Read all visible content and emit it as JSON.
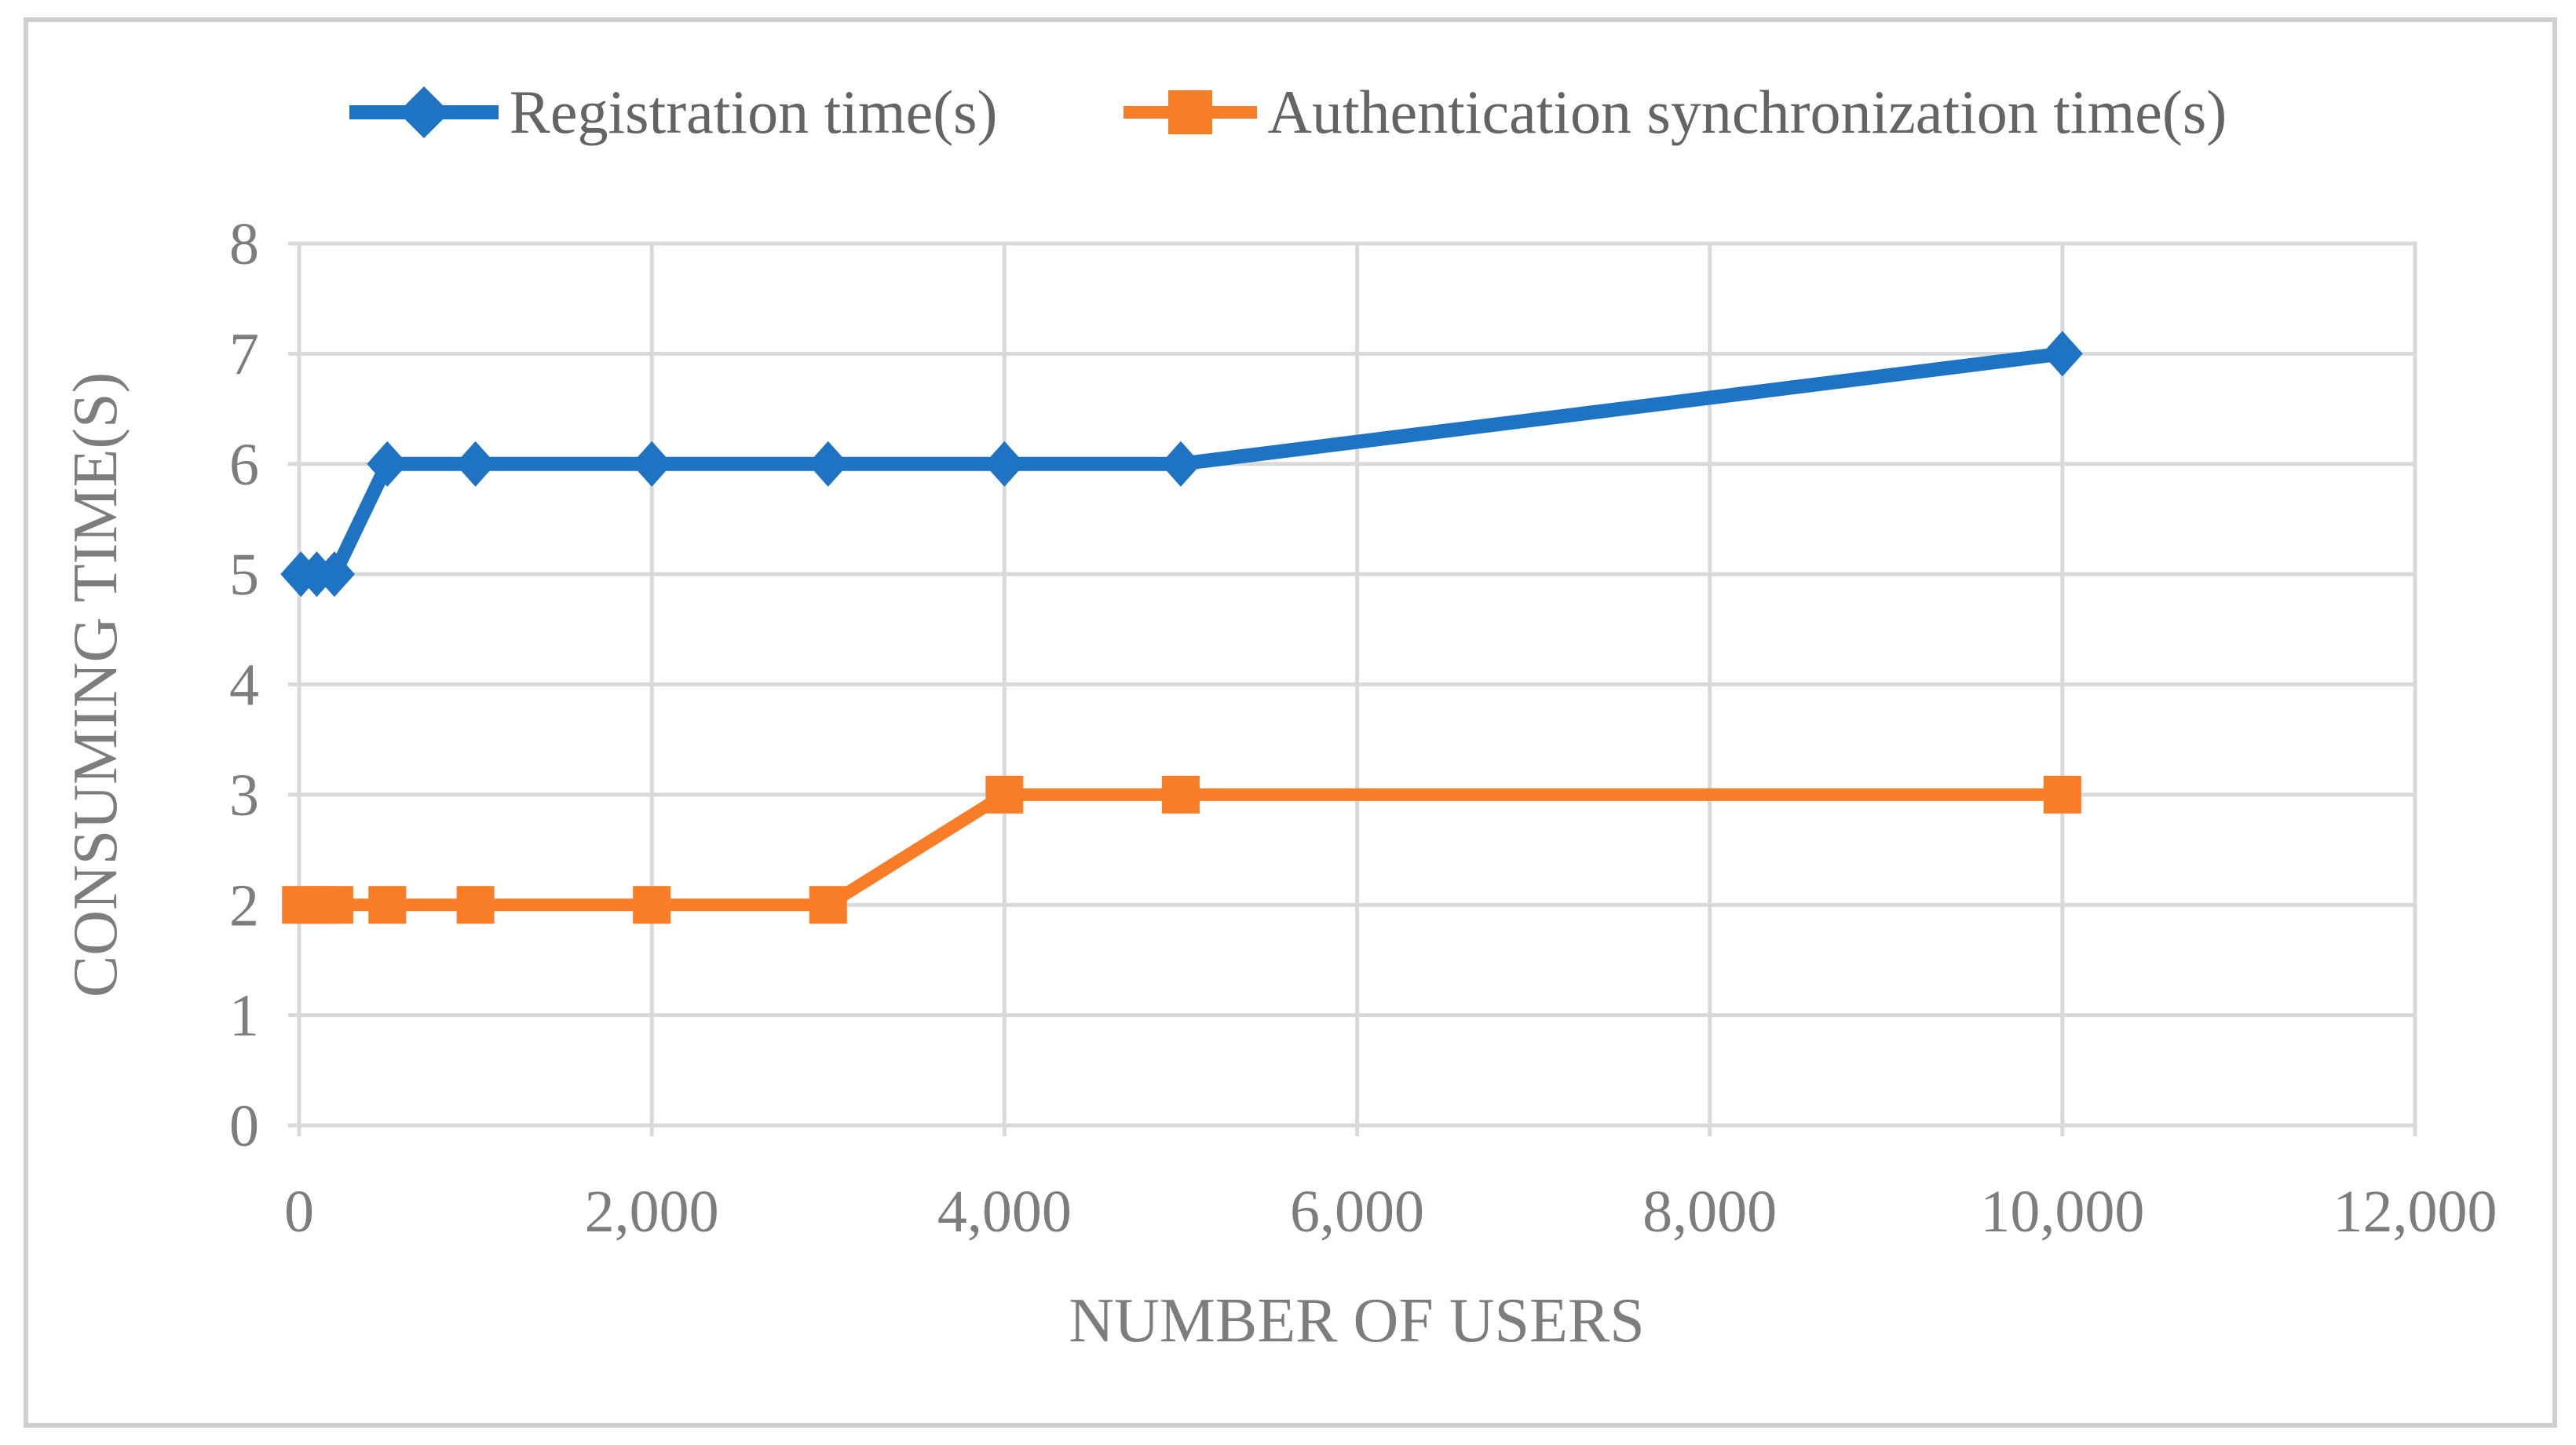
{
  "figure": {
    "background": "#ffffff",
    "border_color": "#cfcfcf"
  },
  "legend": {
    "position": "top-center",
    "text_color": "#646464",
    "items": [
      {
        "label": "Registration time(s)",
        "marker": "diamond",
        "color": "#1E73C2"
      },
      {
        "label": "Authentication synchronization time(s)",
        "marker": "square",
        "color": "#F97D27"
      }
    ]
  },
  "chart_data": {
    "type": "line",
    "title": "",
    "xlabel": "NUMBER OF USERS",
    "ylabel": "CONSUMING TIME(S)",
    "x": [
      10,
      100,
      200,
      500,
      1000,
      2000,
      3000,
      4000,
      5000,
      10000
    ],
    "series": [
      {
        "name": "Registration time(s)",
        "color": "#1E73C2",
        "marker": "diamond",
        "values": [
          5,
          5,
          5,
          6,
          6,
          6,
          6,
          6,
          6,
          7
        ]
      },
      {
        "name": "Authentication synchronization time(s)",
        "color": "#F97D27",
        "marker": "square",
        "values": [
          2,
          2,
          2,
          2,
          2,
          2,
          2,
          3,
          3,
          3
        ]
      }
    ],
    "x_axis": {
      "min": 0,
      "max": 12000,
      "tick_step": 2000,
      "tick_labels": [
        "0",
        "2,000",
        "4,000",
        "6,000",
        "8,000",
        "10,000",
        "12,000"
      ]
    },
    "y_axis": {
      "min": 0,
      "max": 8,
      "tick_step": 1,
      "tick_labels": [
        "0",
        "1",
        "2",
        "3",
        "4",
        "5",
        "6",
        "7",
        "8"
      ]
    },
    "grid": true,
    "gridline_color": "#d9d9d9",
    "axis_text_color": "#7d7d7d",
    "legend_position": "top"
  }
}
